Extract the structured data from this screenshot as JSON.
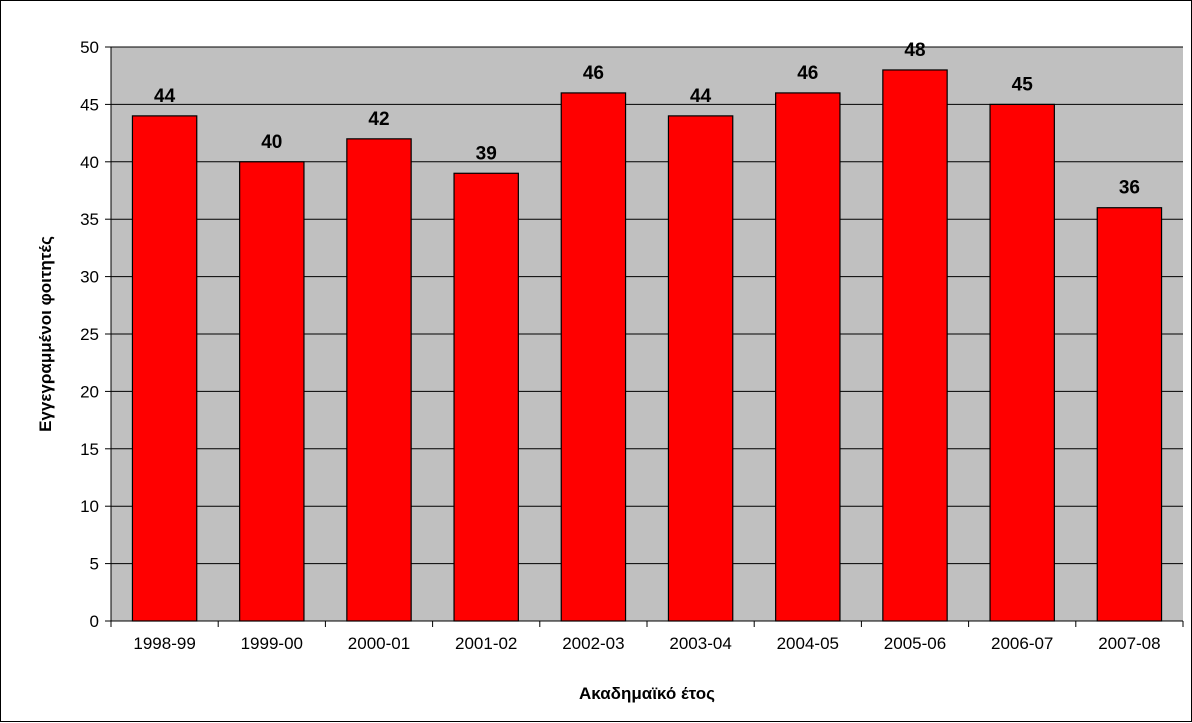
{
  "chart_data": {
    "type": "bar",
    "categories": [
      "1998-99",
      "1999-00",
      "2000-01",
      "2001-02",
      "2002-03",
      "2003-04",
      "2004-05",
      "2005-06",
      "2006-07",
      "2007-08"
    ],
    "values": [
      44,
      40,
      42,
      39,
      46,
      44,
      46,
      48,
      45,
      36
    ],
    "data_labels": [
      "44",
      "40",
      "42",
      "39",
      "46",
      "44",
      "46",
      "48",
      "45",
      "36"
    ],
    "yticks": [
      "0",
      "5",
      "10",
      "15",
      "20",
      "25",
      "30",
      "35",
      "40",
      "45",
      "50"
    ],
    "ylim": [
      0,
      50
    ],
    "xlabel": "Ακαδημαϊκό έτος",
    "ylabel": "Εγγεγραμμένοι φοιτητές",
    "grid": true,
    "legend": false,
    "colors": {
      "bar": "#ff0000",
      "plot_background": "#c0c0c0",
      "gridline": "#000000"
    }
  }
}
